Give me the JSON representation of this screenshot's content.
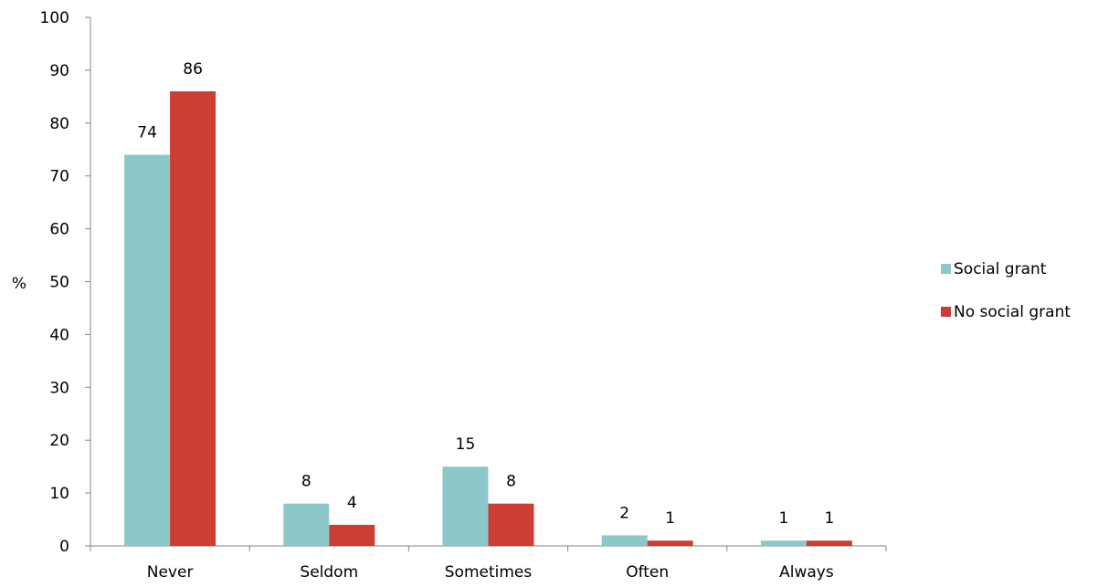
{
  "chart_data": {
    "type": "bar",
    "title": "",
    "xlabel": "",
    "ylabel": "%",
    "ylim": [
      0,
      100
    ],
    "yticks": [
      0,
      10,
      20,
      30,
      40,
      50,
      60,
      70,
      80,
      90,
      100
    ],
    "grid": false,
    "legend_position": "right",
    "categories": [
      "Never",
      "Seldom",
      "Sometimes",
      "Often",
      "Always"
    ],
    "series": [
      {
        "name": "Social grant",
        "color": "#8CC8C9",
        "values": [
          74,
          8,
          15,
          2,
          1
        ]
      },
      {
        "name": "No social grant",
        "color": "#CC3D33",
        "values": [
          86,
          4,
          8,
          1,
          1
        ]
      }
    ]
  }
}
